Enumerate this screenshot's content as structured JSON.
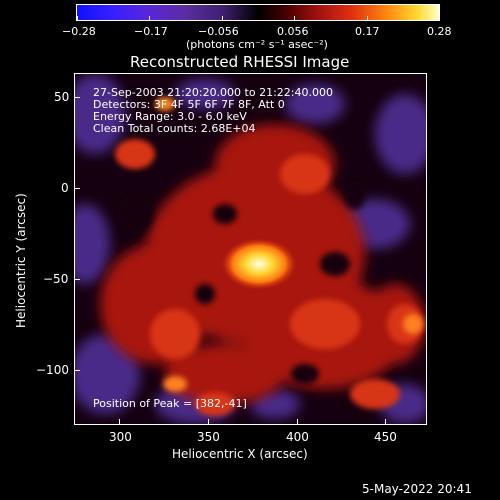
{
  "colorbar": {
    "tick_labels": [
      "−0.28",
      "−0.17",
      "−0.056",
      "0.056",
      "0.17",
      "0.28"
    ],
    "unit_label": "(photons cm⁻² s⁻¹ asec⁻²)"
  },
  "title": "Reconstructed RHESSI Image",
  "info": {
    "line1": "27-Sep-2003 21:20:20.000 to 21:22:40.000",
    "line2": "Detectors: 3F 4F 5F 6F 7F 8F, Att 0",
    "line3": "Energy Range: 3.0 - 6.0 keV",
    "line4": "Clean     Total counts: 2.68E+04"
  },
  "peak_text": "Position of Peak = [382,-41]",
  "axes": {
    "x_label": "Heliocentric X (arcsec)",
    "y_label": "Heliocentric Y (arcsec)",
    "x_ticks": [
      "300",
      "350",
      "400",
      "450"
    ],
    "y_ticks": [
      "50",
      "0",
      "−50",
      "−100"
    ]
  },
  "timestamp": "5-May-2022 20:41"
}
